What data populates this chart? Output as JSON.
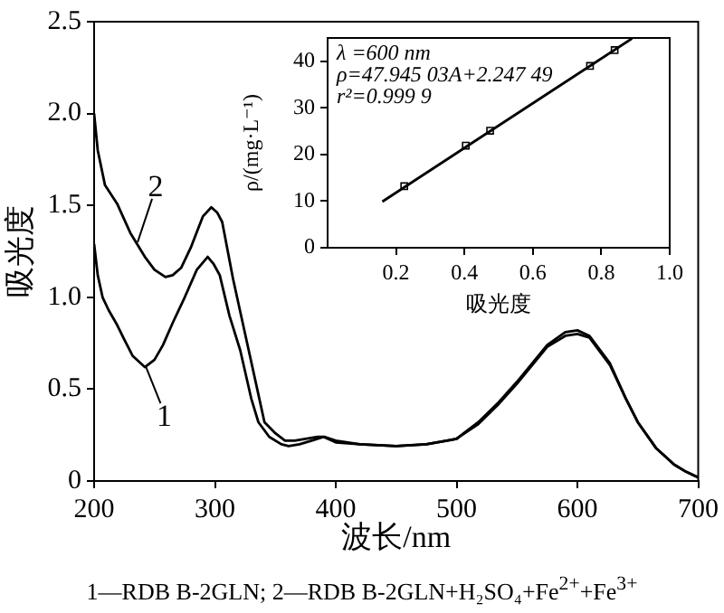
{
  "chart_data": [
    {
      "type": "line",
      "xlabel": "波长/nm",
      "ylabel": "吸光度",
      "xlim": [
        200,
        700
      ],
      "xticks": [
        200,
        300,
        400,
        500,
        600,
        700
      ],
      "ylim": [
        0,
        2.5
      ],
      "yticks": [
        0,
        {
          "value": 0.5,
          "label": "0.5"
        },
        {
          "value": 1,
          "label": "1.0"
        },
        {
          "value": 1.5,
          "label": "1.5"
        },
        {
          "value": 2,
          "label": "2.0"
        },
        {
          "value": 2.5,
          "label": "2.5"
        }
      ],
      "grid": false,
      "legend": false,
      "marker": "none",
      "line_style": "solid",
      "series": [
        {
          "color": "#000000",
          "x": [
            200,
            203,
            207,
            212,
            219,
            225,
            232,
            242,
            250,
            257,
            265,
            275,
            285,
            294,
            299,
            304,
            312,
            321,
            330,
            336,
            345,
            355,
            361,
            370,
            380,
            390,
            400,
            420,
            450,
            475,
            492,
            500,
            518,
            535,
            550,
            575,
            590,
            600,
            610,
            627,
            640,
            650,
            665,
            680,
            690,
            700
          ],
          "values": [
            1.29,
            1.12,
            1.0,
            0.93,
            0.85,
            0.77,
            0.68,
            0.62,
            0.66,
            0.74,
            0.86,
            1.0,
            1.15,
            1.22,
            1.18,
            1.12,
            0.9,
            0.71,
            0.45,
            0.32,
            0.24,
            0.2,
            0.19,
            0.2,
            0.22,
            0.24,
            0.21,
            0.2,
            0.19,
            0.2,
            0.22,
            0.23,
            0.31,
            0.42,
            0.53,
            0.73,
            0.79,
            0.8,
            0.78,
            0.63,
            0.45,
            0.32,
            0.18,
            0.09,
            0.05,
            0.02
          ]
        },
        {
          "color": "#000000",
          "x": [
            200,
            203,
            209,
            219,
            230,
            242,
            250,
            259,
            265,
            272,
            280,
            290,
            297,
            302,
            306,
            315,
            326,
            335,
            341,
            350,
            358,
            366,
            375,
            385,
            391,
            400,
            420,
            450,
            475,
            492,
            500,
            518,
            535,
            550,
            575,
            590,
            600,
            610,
            627,
            640,
            650,
            665,
            680,
            690,
            700
          ],
          "values": [
            2.0,
            1.8,
            1.61,
            1.51,
            1.35,
            1.22,
            1.15,
            1.11,
            1.12,
            1.16,
            1.27,
            1.44,
            1.49,
            1.46,
            1.41,
            1.1,
            0.77,
            0.5,
            0.32,
            0.26,
            0.22,
            0.22,
            0.23,
            0.24,
            0.24,
            0.22,
            0.2,
            0.19,
            0.2,
            0.22,
            0.23,
            0.32,
            0.43,
            0.54,
            0.74,
            0.81,
            0.82,
            0.79,
            0.64,
            0.45,
            0.32,
            0.18,
            0.09,
            0.05,
            0.02
          ]
        }
      ],
      "annotations": [
        {
          "text": "2",
          "x": 236,
          "y": 1.3
        },
        {
          "text": "1",
          "x": 243,
          "y": 0.62
        },
        "1—RDB B-2GLN; 2—RDB B-2GLN+H₂SO₄+Fe$^{2+}$+Fe$^{3+}$"
      ]
    },
    {
      "type": "scatter",
      "xlabel": "吸光度",
      "ylabel": "ρ/(mg·L⁻¹)",
      "xlim": [
        0,
        1
      ],
      "xticks": [
        0.2,
        0.4,
        0.6,
        0.8,
        {
          "value": 1,
          "label": "1.0"
        }
      ],
      "ylim": [
        0,
        45
      ],
      "yticks": [
        0,
        10,
        20,
        30,
        40
      ],
      "grid": false,
      "legend": false,
      "marker": "square",
      "series": [
        {
          "color": "#000000",
          "x": [
            0.224,
            0.404,
            0.475,
            0.767,
            0.839
          ],
          "values": [
            13.2,
            21.9,
            25.1,
            39.0,
            42.4
          ]
        },
        {
          "type": "line",
          "marker": "none",
          "color": "#000000",
          "x": [
            0.16,
            0.89
          ],
          "values": [
            9.9,
            44.9
          ]
        }
      ],
      "annotations": [
        "λ =600 nm",
        "ρ=47.945 03A+2.247 49",
        "r²=0.999 9"
      ]
    }
  ]
}
